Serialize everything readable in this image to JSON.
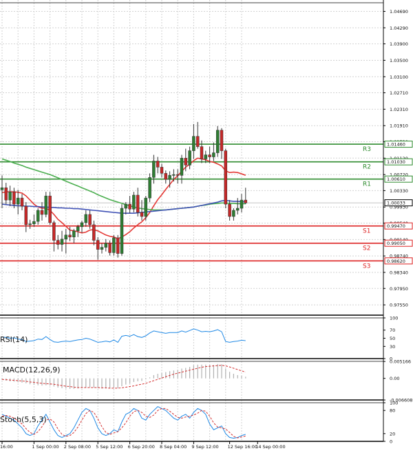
{
  "chart_data": {
    "type": "candlestick",
    "instrument_note": "EURUSD H4 with SMA(10/50/100), RSI(14), MACD(12,26,9), Stoch(5,5,3)",
    "colors": {
      "bull": "#2e7d32",
      "bear": "#c62828",
      "line_red": "#e53935",
      "line_green": "#4caf50",
      "line_blue": "#3f51b5",
      "resist": "#2e8b2e",
      "support": "#dd2222",
      "indicator": "#1e88e5"
    },
    "price_axis": {
      "ylim": [
        0.973,
        1.049
      ],
      "ticks": [
        "1.04690",
        "1.04290",
        "1.03900",
        "1.03500",
        "1.03100",
        "1.02710",
        "1.02310",
        "1.01910",
        "1.01520",
        "1.01120",
        "1.00720",
        "1.00330",
        "0.99930",
        "0.99540",
        "0.99140",
        "0.98740",
        "0.98340",
        "0.97950",
        "0.97550"
      ],
      "current": "1.00033"
    },
    "levels": [
      {
        "name": "R3",
        "value": 1.0146,
        "label": "1.01460",
        "kind": "resistance"
      },
      {
        "name": "R2",
        "value": 1.0103,
        "label": "1.01030",
        "kind": "resistance"
      },
      {
        "name": "R1",
        "value": 1.0061,
        "label": "1.00610",
        "kind": "resistance"
      },
      {
        "name": "S1",
        "value": 0.9947,
        "label": "0.99470",
        "kind": "support"
      },
      {
        "name": "S2",
        "value": 0.9905,
        "label": "0.99050",
        "kind": "support"
      },
      {
        "name": "S3",
        "value": 0.9862,
        "label": "0.98620",
        "kind": "support"
      }
    ],
    "x_labels": [
      {
        "label": "16:00",
        "i": 0
      },
      {
        "label": "1 Sep 00:00",
        "i": 8
      },
      {
        "label": "2 Sep 08:00",
        "i": 16
      },
      {
        "label": "5 Sep 12:00",
        "i": 24
      },
      {
        "label": "6 Sep 20:00",
        "i": 32
      },
      {
        "label": "8 Sep 04:00",
        "i": 40
      },
      {
        "label": "9 Sep 12:00",
        "i": 48
      },
      {
        "label": "12 Sep 16:00",
        "i": 57
      },
      {
        "label": "14 Sep 00:00",
        "i": 64
      }
    ],
    "candles": [
      [
        1.0035,
        1.007,
        0.999,
        1.004
      ],
      [
        1.004,
        1.0052,
        1.0,
        1.001
      ],
      [
        1.001,
        1.0045,
        0.9995,
        1.003
      ],
      [
        1.003,
        1.004,
        0.999,
        1.0
      ],
      [
        1.0,
        1.0035,
        0.9975,
        1.0015
      ],
      [
        1.0015,
        1.0025,
        0.9985,
        0.9995
      ],
      [
        0.9995,
        1.0005,
        0.9932,
        0.995
      ],
      [
        0.995,
        0.9962,
        0.994,
        0.9952
      ],
      [
        0.9952,
        0.9975,
        0.9945,
        0.9958
      ],
      [
        0.9958,
        0.999,
        0.995,
        0.9985
      ],
      [
        0.9985,
        1.0005,
        0.996,
        0.9975
      ],
      [
        0.9975,
        1.003,
        0.9968,
        1.002
      ],
      [
        1.002,
        1.003,
        0.995,
        0.9955
      ],
      [
        0.9955,
        0.996,
        0.9885,
        0.9912
      ],
      [
        0.9912,
        0.9925,
        0.989,
        0.9902
      ],
      [
        0.9902,
        0.9935,
        0.9885,
        0.9915
      ],
      [
        0.9915,
        0.994,
        0.988,
        0.9925
      ],
      [
        0.9925,
        0.9945,
        0.991,
        0.992
      ],
      [
        0.992,
        0.994,
        0.9905,
        0.9935
      ],
      [
        0.9935,
        0.995,
        0.992,
        0.9945
      ],
      [
        0.9945,
        0.996,
        0.993,
        0.9955
      ],
      [
        0.9955,
        0.9985,
        0.9945,
        0.9975
      ],
      [
        0.9975,
        0.9985,
        0.994,
        0.995
      ],
      [
        0.995,
        0.996,
        0.99,
        0.9912
      ],
      [
        0.9912,
        0.992,
        0.9865,
        0.989
      ],
      [
        0.989,
        0.9905,
        0.988,
        0.9895
      ],
      [
        0.9895,
        0.9915,
        0.9885,
        0.9905
      ],
      [
        0.9905,
        0.9912,
        0.9875,
        0.9882
      ],
      [
        0.9882,
        0.9925,
        0.9875,
        0.9918
      ],
      [
        0.9918,
        0.9925,
        0.987,
        0.988
      ],
      [
        0.988,
        1.0,
        0.9875,
        0.999
      ],
      [
        0.999,
        1.0005,
        0.9975,
        1.0
      ],
      [
        1.0,
        1.002,
        0.9978,
        0.9988
      ],
      [
        0.9988,
        1.003,
        0.998,
        1.0022
      ],
      [
        1.0022,
        1.004,
        0.997,
        0.998
      ],
      [
        0.998,
        1.001,
        0.996,
        0.997
      ],
      [
        0.997,
        1.002,
        0.996,
        1.0015
      ],
      [
        1.0015,
        1.0075,
        1.0005,
        1.0065
      ],
      [
        1.0065,
        1.012,
        1.005,
        1.0105
      ],
      [
        1.0105,
        1.0115,
        1.0075,
        1.009
      ],
      [
        1.009,
        1.0098,
        1.0065,
        1.0075
      ],
      [
        1.0075,
        1.0082,
        1.005,
        1.006
      ],
      [
        1.006,
        1.008,
        1.004,
        1.007
      ],
      [
        1.007,
        1.0085,
        1.0055,
        1.0072
      ],
      [
        1.0072,
        1.0085,
        1.005,
        1.007
      ],
      [
        1.007,
        1.012,
        1.005,
        1.0112
      ],
      [
        1.0112,
        1.0135,
        1.008,
        1.0095
      ],
      [
        1.0095,
        1.014,
        1.0085,
        1.013
      ],
      [
        1.013,
        1.0195,
        1.011,
        1.0165
      ],
      [
        1.0165,
        1.02,
        1.0135,
        1.014
      ],
      [
        1.014,
        1.0155,
        1.01,
        1.011
      ],
      [
        1.011,
        1.013,
        1.01,
        1.012
      ],
      [
        1.012,
        1.014,
        1.01,
        1.0115
      ],
      [
        1.0115,
        1.015,
        1.0105,
        1.0125
      ],
      [
        1.0125,
        1.019,
        1.0115,
        1.018
      ],
      [
        1.018,
        1.0185,
        1.011,
        1.013
      ],
      [
        1.013,
        1.0135,
        0.999,
        1.0
      ],
      [
        1.0,
        1.001,
        0.996,
        0.997
      ],
      [
        0.997,
        0.999,
        0.996,
        0.9985
      ],
      [
        0.9985,
        1.0015,
        0.9975,
        0.999
      ],
      [
        0.999,
        1.0025,
        0.998,
        1.001
      ],
      [
        1.001,
        1.004,
        1.0,
        1.0003
      ]
    ],
    "series": [
      {
        "name": "SMA10 (red)",
        "values": [
          1.0028,
          1.003,
          1.003,
          1.003,
          1.0029,
          1.0027,
          1.002,
          1.001,
          1.0,
          0.9993,
          0.999,
          0.999,
          0.9985,
          0.9975,
          0.9963,
          0.9955,
          0.9946,
          0.9937,
          0.9935,
          0.9933,
          0.993,
          0.9932,
          0.9937,
          0.9938,
          0.9935,
          0.993,
          0.9925,
          0.9922,
          0.992,
          0.9916,
          0.992,
          0.9926,
          0.9933,
          0.9942,
          0.995,
          0.9957,
          0.9967,
          0.998,
          0.9996,
          1.0011,
          1.0023,
          1.0036,
          1.0048,
          1.006,
          1.0069,
          1.008,
          1.009,
          1.0097,
          1.0106,
          1.0112,
          1.011,
          1.0108,
          1.0104,
          1.0102,
          1.0098,
          1.0093,
          1.0081,
          1.0077,
          1.0078,
          1.0077,
          1.0074,
          1.007
        ]
      },
      {
        "name": "SMA50 (green)",
        "values": [
          1.011,
          1.0107,
          1.0104,
          1.01,
          1.0097,
          1.0094,
          1.009,
          1.0087,
          1.0084,
          1.0081,
          1.0078,
          1.0075,
          1.0072,
          1.0068,
          1.0064,
          1.006,
          1.0056,
          1.0052,
          1.0048,
          1.0044,
          1.004,
          1.0036,
          1.0032,
          1.0028,
          1.0023,
          1.0019,
          1.0015,
          1.0011,
          1.0008,
          1.0005,
          1.0002,
          0.9999,
          0.9996,
          0.9993,
          0.9991,
          0.9989,
          0.9988,
          0.9987,
          0.9986,
          0.9986,
          0.9986,
          0.9986,
          0.9987,
          0.9988,
          0.9989,
          0.999,
          0.9991,
          0.9992,
          0.9993,
          0.9995,
          0.9997,
          0.9998,
          1.0,
          1.0001,
          1.0002,
          1.0003,
          1.0003,
          1.0002,
          1.0002,
          1.0001,
          1.0001,
          1.0001
        ]
      },
      {
        "name": "SMA100 (blue)",
        "values": [
          1.0,
          0.9999,
          0.9998,
          0.9997,
          0.9996,
          0.9996,
          0.9995,
          0.9995,
          0.9994,
          0.9994,
          0.9993,
          0.9993,
          0.9992,
          0.9992,
          0.9991,
          0.9991,
          0.999,
          0.999,
          0.9989,
          0.9989,
          0.9988,
          0.9987,
          0.9986,
          0.9985,
          0.9984,
          0.9983,
          0.9982,
          0.9981,
          0.998,
          0.9979,
          0.9978,
          0.9978,
          0.9978,
          0.9978,
          0.9979,
          0.998,
          0.9981,
          0.9982,
          0.9983,
          0.9984,
          0.9985,
          0.9986,
          0.9987,
          0.9988,
          0.9989,
          0.999,
          0.9991,
          0.9992,
          0.9993,
          0.9995,
          0.9997,
          0.9999,
          1.0001,
          1.0003,
          1.0005,
          1.0008,
          1.0009,
          1.0008,
          1.0007,
          1.0007,
          1.0006,
          1.0006
        ]
      }
    ],
    "indicators": {
      "rsi": {
        "title": "RSI(14)",
        "ticks": [
          "100",
          "70",
          "50",
          "30",
          "0"
        ],
        "ylim": [
          0,
          100
        ],
        "values": [
          53,
          52,
          50,
          51,
          48,
          47,
          42,
          43,
          44,
          48,
          47,
          54,
          47,
          41,
          40,
          42,
          43,
          42,
          44,
          46,
          47,
          50,
          48,
          44,
          40,
          41,
          43,
          41,
          46,
          40,
          55,
          57,
          55,
          59,
          54,
          52,
          56,
          63,
          68,
          66,
          64,
          62,
          64,
          64,
          64,
          68,
          65,
          69,
          73,
          70,
          66,
          67,
          66,
          68,
          71,
          66,
          42,
          40,
          42,
          43,
          45,
          44
        ]
      },
      "macd": {
        "title": "MACD(12,26,9)",
        "ticks": [
          "0.005166",
          "0.00",
          "-0.006608"
        ],
        "ylim": [
          -0.0066,
          0.0052
        ],
        "hist": [
          -0.0005,
          -0.0007,
          -0.0009,
          -0.001,
          -0.0012,
          -0.0013,
          -0.0015,
          -0.0018,
          -0.002,
          -0.0021,
          -0.0022,
          -0.0021,
          -0.0022,
          -0.0025,
          -0.0028,
          -0.003,
          -0.0031,
          -0.0032,
          -0.0032,
          -0.0031,
          -0.003,
          -0.0028,
          -0.0027,
          -0.0028,
          -0.003,
          -0.0031,
          -0.0031,
          -0.0031,
          -0.0029,
          -0.003,
          -0.0024,
          -0.0019,
          -0.0016,
          -0.0011,
          -0.0009,
          -0.0008,
          -0.0003,
          0.0003,
          0.001,
          0.0014,
          0.0017,
          0.0019,
          0.0022,
          0.0024,
          0.0026,
          0.003,
          0.0032,
          0.0035,
          0.004,
          0.0042,
          0.0042,
          0.0042,
          0.0041,
          0.0041,
          0.0044,
          0.0043,
          0.003,
          0.002,
          0.0014,
          0.001,
          0.0008,
          0.0005
        ],
        "signal": [
          -0.0003,
          -0.0004,
          -0.0005,
          -0.0006,
          -0.0007,
          -0.0008,
          -0.0009,
          -0.0011,
          -0.0012,
          -0.0014,
          -0.0015,
          -0.0016,
          -0.0017,
          -0.0018,
          -0.002,
          -0.0022,
          -0.0024,
          -0.0025,
          -0.0027,
          -0.0028,
          -0.0028,
          -0.0028,
          -0.0028,
          -0.0028,
          -0.0028,
          -0.0029,
          -0.0029,
          -0.003,
          -0.003,
          -0.003,
          -0.0029,
          -0.0027,
          -0.0025,
          -0.0023,
          -0.002,
          -0.0018,
          -0.0015,
          -0.0011,
          -0.0007,
          -0.0003,
          0.0001,
          0.0005,
          0.0009,
          0.0013,
          0.0016,
          0.0019,
          0.0022,
          0.0025,
          0.0028,
          0.0031,
          0.0034,
          0.0036,
          0.0037,
          0.0038,
          0.0039,
          0.004,
          0.0038,
          0.0035,
          0.0031,
          0.0027,
          0.0023,
          0.0019
        ]
      },
      "stoch": {
        "title": "Stoch(5,5,3)",
        "ticks": [
          "100",
          "80",
          "20",
          "0"
        ],
        "ylim": [
          0,
          100
        ],
        "k": [
          70,
          65,
          60,
          55,
          45,
          35,
          20,
          15,
          20,
          40,
          55,
          70,
          50,
          30,
          15,
          10,
          15,
          20,
          35,
          55,
          75,
          85,
          80,
          60,
          35,
          20,
          15,
          20,
          30,
          25,
          50,
          70,
          75,
          85,
          80,
          60,
          55,
          70,
          80,
          90,
          85,
          80,
          70,
          60,
          55,
          65,
          70,
          60,
          75,
          85,
          80,
          70,
          45,
          30,
          35,
          40,
          20,
          10,
          8,
          10,
          15,
          18
        ],
        "d": [
          65,
          67,
          65,
          60,
          53,
          45,
          33,
          23,
          18,
          25,
          38,
          55,
          58,
          50,
          32,
          18,
          13,
          15,
          23,
          37,
          55,
          72,
          80,
          75,
          58,
          38,
          23,
          18,
          22,
          25,
          35,
          48,
          65,
          77,
          80,
          75,
          65,
          62,
          68,
          80,
          85,
          85,
          78,
          70,
          62,
          60,
          63,
          65,
          68,
          73,
          80,
          78,
          65,
          48,
          37,
          35,
          32,
          23,
          13,
          9,
          11,
          14
        ]
      }
    }
  }
}
